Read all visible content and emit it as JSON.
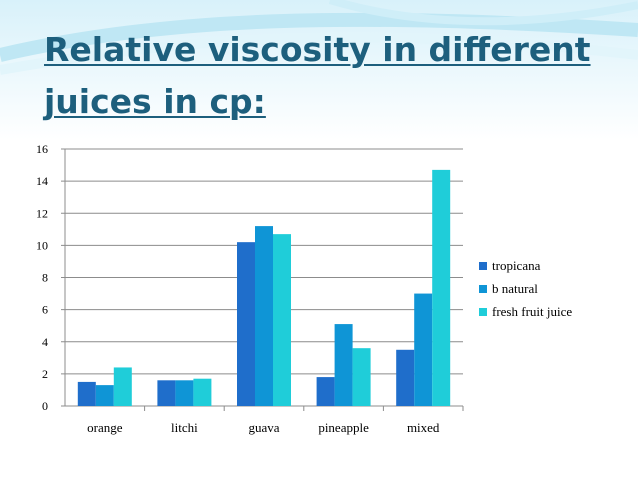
{
  "slide": {
    "title": "Relative viscosity in different juices in cp:"
  },
  "chart_data": {
    "type": "bar",
    "categories": [
      "orange",
      "litchi",
      "guava",
      "pineapple",
      "mixed"
    ],
    "series": [
      {
        "name": "tropicana",
        "values": [
          1.5,
          1.6,
          10.2,
          1.8,
          3.5
        ],
        "color": "#1f6ecb"
      },
      {
        "name": "b natural",
        "values": [
          1.3,
          1.6,
          11.2,
          5.1,
          7.0
        ],
        "color": "#0f95d6"
      },
      {
        "name": "fresh fruit juice",
        "values": [
          2.4,
          1.7,
          10.7,
          3.6,
          14.7
        ],
        "color": "#1fcdd9"
      }
    ],
    "ylim": [
      0,
      16
    ],
    "yticks": [
      0,
      2,
      4,
      6,
      8,
      10,
      12,
      14,
      16
    ],
    "grid": true,
    "legend_position": "right",
    "title": "",
    "xlabel": "",
    "ylabel": ""
  }
}
